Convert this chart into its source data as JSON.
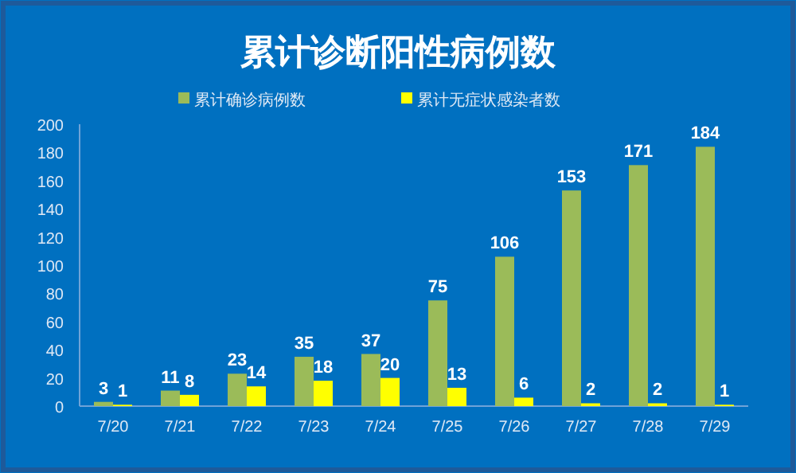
{
  "chart_data": {
    "type": "bar",
    "title": "累计诊断阳性病例数",
    "categories": [
      "7/20",
      "7/21",
      "7/22",
      "7/23",
      "7/24",
      "7/25",
      "7/26",
      "7/27",
      "7/28",
      "7/29"
    ],
    "series": [
      {
        "name": "累计确诊病例数",
        "color": "#9bbb59",
        "values": [
          3,
          11,
          23,
          35,
          37,
          75,
          106,
          153,
          171,
          184
        ]
      },
      {
        "name": "累计无症状感染者数",
        "color": "#ffff00",
        "values": [
          1,
          8,
          14,
          18,
          20,
          13,
          6,
          2,
          2,
          1
        ]
      }
    ],
    "ylim": [
      0,
      200
    ],
    "yticks": [
      0,
      20,
      40,
      60,
      80,
      100,
      120,
      140,
      160,
      180,
      200
    ],
    "grid": false,
    "legend": "top",
    "data_labels": true
  }
}
